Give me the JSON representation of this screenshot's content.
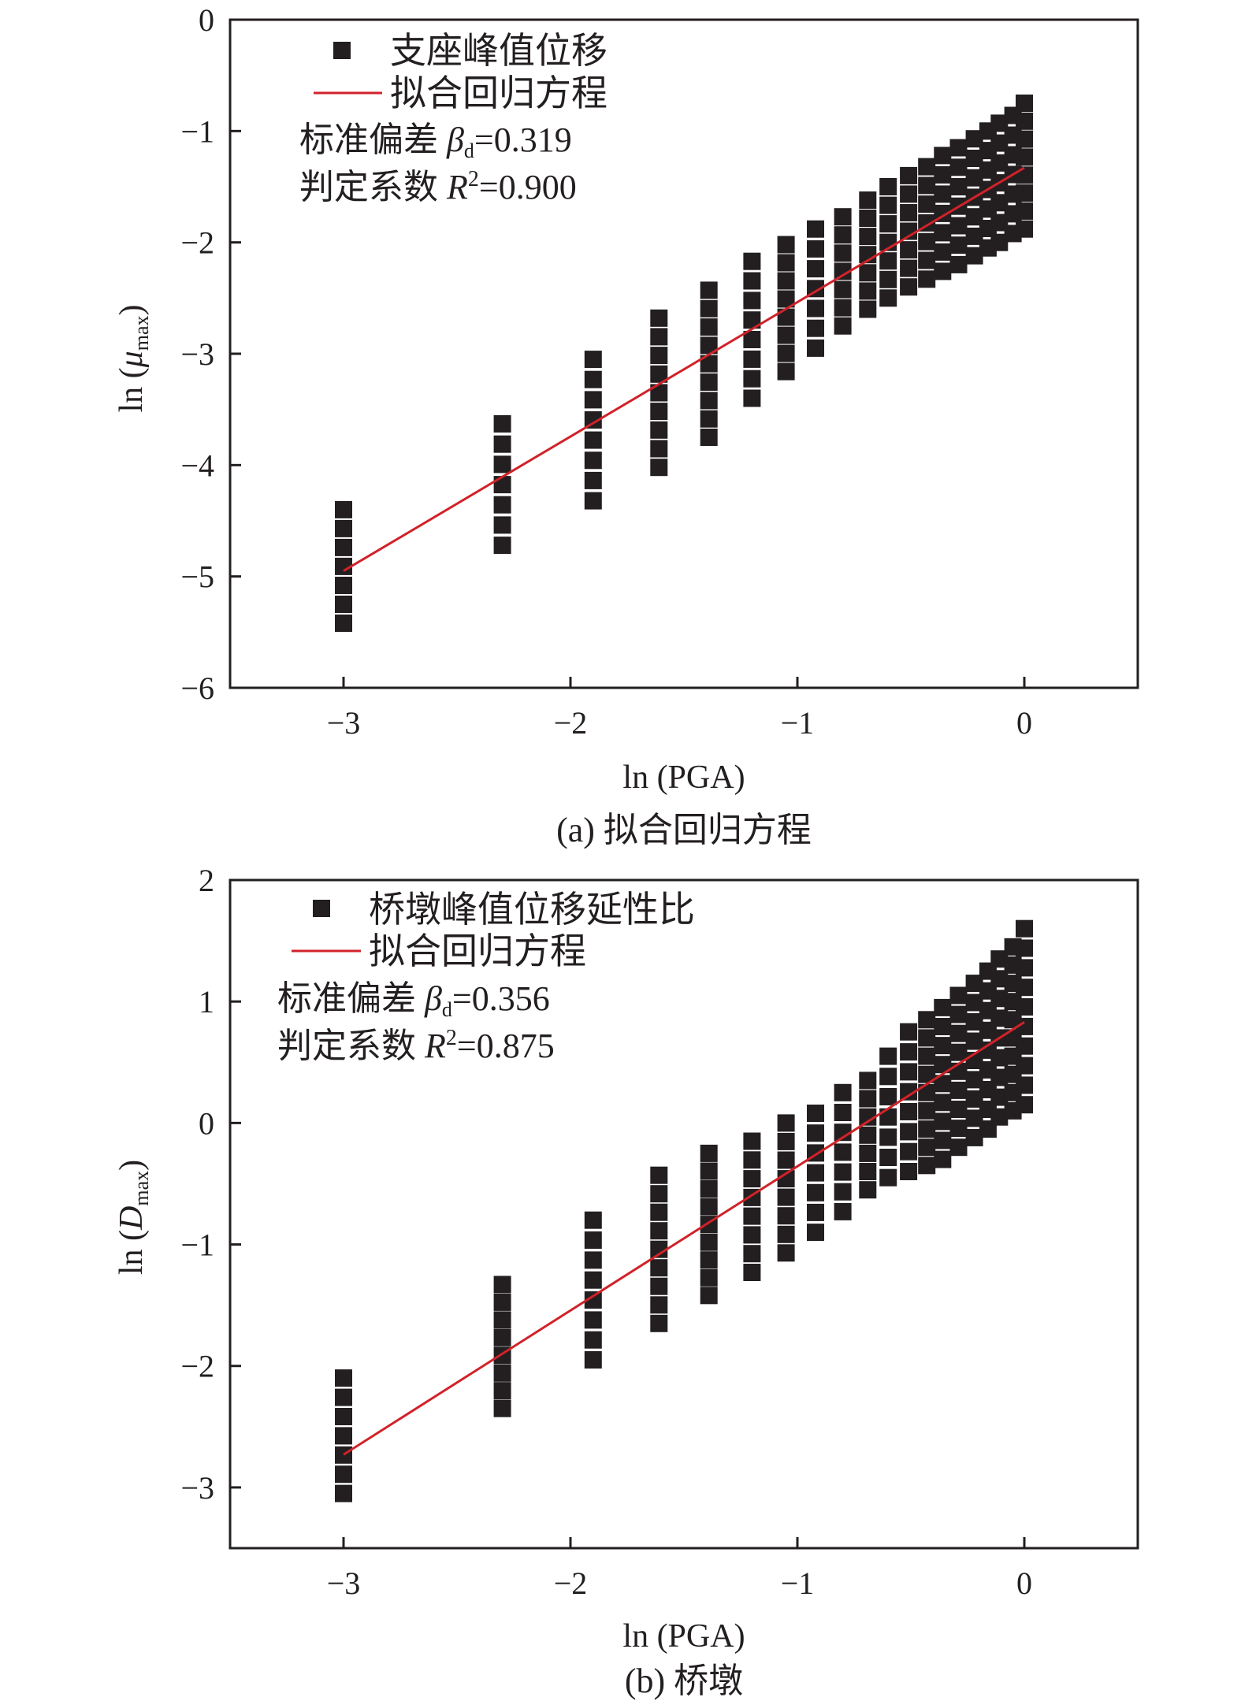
{
  "chart_data": [
    {
      "type": "scatter",
      "panel": "a",
      "caption": "(a) 拟合回归方程",
      "xlabel": "ln (PGA)",
      "ylabel_prefix": "ln (",
      "ylabel_symbol": "μ",
      "ylabel_sub": "max",
      "ylabel_suffix": ")",
      "xlim": [
        -3.5,
        0.5
      ],
      "ylim": [
        -6,
        0
      ],
      "xticks": [
        -3,
        -2,
        -1,
        0
      ],
      "yticks": [
        0,
        -1,
        -2,
        -3,
        -4,
        -5,
        -6
      ],
      "xtick_labels": [
        "−3",
        "−2",
        "−1",
        "0"
      ],
      "ytick_labels": [
        "0",
        "−1",
        "−2",
        "−3",
        "−4",
        "−5",
        "−6"
      ],
      "legend_position": "top-left",
      "legend": {
        "points": "支座峰值位移",
        "line": "拟合回归方程"
      },
      "stats": {
        "beta_prefix": "标准偏差 ",
        "beta_symbol": "β",
        "beta_sub": "d",
        "beta_value": "=0.319",
        "r2_prefix": "判定系数 ",
        "r2_symbol": "R",
        "r2_sup": "2",
        "r2_value": "=0.900"
      },
      "fit_line": {
        "x": [
          -3.0,
          0.0
        ],
        "y": [
          -4.95,
          -1.33
        ]
      },
      "point_columns": [
        {
          "x": -3.0,
          "y_min": -5.42,
          "y_max": -4.4
        },
        {
          "x": -2.3,
          "y_min": -4.72,
          "y_max": -3.63
        },
        {
          "x": -1.9,
          "y_min": -4.32,
          "y_max": -3.05
        },
        {
          "x": -1.61,
          "y_min": -4.02,
          "y_max": -2.68
        },
        {
          "x": -1.39,
          "y_min": -3.75,
          "y_max": -2.43
        },
        {
          "x": -1.2,
          "y_min": -3.4,
          "y_max": -2.17
        },
        {
          "x": -1.05,
          "y_min": -3.16,
          "y_max": -2.02
        },
        {
          "x": -0.92,
          "y_min": -2.95,
          "y_max": -1.88
        },
        {
          "x": -0.8,
          "y_min": -2.75,
          "y_max": -1.77
        },
        {
          "x": -0.69,
          "y_min": -2.6,
          "y_max": -1.62
        },
        {
          "x": -0.6,
          "y_min": -2.5,
          "y_max": -1.5
        },
        {
          "x": -0.51,
          "y_min": -2.4,
          "y_max": -1.4
        },
        {
          "x": -0.43,
          "y_min": -2.33,
          "y_max": -1.32
        },
        {
          "x": -0.36,
          "y_min": -2.26,
          "y_max": -1.22
        },
        {
          "x": -0.29,
          "y_min": -2.2,
          "y_max": -1.15
        },
        {
          "x": -0.22,
          "y_min": -2.12,
          "y_max": -1.07
        },
        {
          "x": -0.16,
          "y_min": -2.05,
          "y_max": -1.0
        },
        {
          "x": -0.11,
          "y_min": -2.0,
          "y_max": -0.93
        },
        {
          "x": -0.05,
          "y_min": -1.92,
          "y_max": -0.86
        },
        {
          "x": 0.0,
          "y_min": -1.88,
          "y_max": -0.75
        }
      ]
    },
    {
      "type": "scatter",
      "panel": "b",
      "caption": "(b) 桥墩",
      "xlabel": "ln (PGA)",
      "ylabel_prefix": "ln (",
      "ylabel_symbol": "D",
      "ylabel_sub": "max",
      "ylabel_suffix": ")",
      "xlim": [
        -3.5,
        0.5
      ],
      "ylim": [
        -3.5,
        2
      ],
      "xticks": [
        -3,
        -2,
        -1,
        0
      ],
      "yticks": [
        2,
        1,
        0,
        -1,
        -2,
        -3
      ],
      "xtick_labels": [
        "−3",
        "−2",
        "−1",
        "0"
      ],
      "ytick_labels": [
        "2",
        "1",
        "0",
        "−1",
        "−2",
        "−3"
      ],
      "legend_position": "top-left",
      "legend": {
        "points": "桥墩峰值位移延性比",
        "line": "拟合回归方程"
      },
      "stats": {
        "beta_prefix": "标准偏差 ",
        "beta_symbol": "β",
        "beta_sub": "d",
        "beta_value": "=0.356",
        "r2_prefix": "判定系数 ",
        "r2_symbol": "R",
        "r2_sup": "2",
        "r2_value": "=0.875"
      },
      "fit_line": {
        "x": [
          -3.0,
          0.0
        ],
        "y": [
          -2.73,
          0.83
        ]
      },
      "point_columns": [
        {
          "x": -3.0,
          "y_min": -3.05,
          "y_max": -2.1
        },
        {
          "x": -2.3,
          "y_min": -2.35,
          "y_max": -1.33
        },
        {
          "x": -1.9,
          "y_min": -1.95,
          "y_max": -0.8
        },
        {
          "x": -1.61,
          "y_min": -1.65,
          "y_max": -0.43
        },
        {
          "x": -1.39,
          "y_min": -1.42,
          "y_max": -0.25
        },
        {
          "x": -1.2,
          "y_min": -1.23,
          "y_max": -0.15
        },
        {
          "x": -1.05,
          "y_min": -1.07,
          "y_max": 0.0
        },
        {
          "x": -0.92,
          "y_min": -0.9,
          "y_max": 0.08
        },
        {
          "x": -0.8,
          "y_min": -0.73,
          "y_max": 0.25
        },
        {
          "x": -0.69,
          "y_min": -0.55,
          "y_max": 0.35
        },
        {
          "x": -0.6,
          "y_min": -0.45,
          "y_max": 0.55
        },
        {
          "x": -0.51,
          "y_min": -0.4,
          "y_max": 0.75
        },
        {
          "x": -0.43,
          "y_min": -0.35,
          "y_max": 0.85
        },
        {
          "x": -0.36,
          "y_min": -0.3,
          "y_max": 0.95
        },
        {
          "x": -0.29,
          "y_min": -0.2,
          "y_max": 1.05
        },
        {
          "x": -0.22,
          "y_min": -0.12,
          "y_max": 1.15
        },
        {
          "x": -0.16,
          "y_min": -0.05,
          "y_max": 1.25
        },
        {
          "x": -0.11,
          "y_min": 0.05,
          "y_max": 1.35
        },
        {
          "x": -0.05,
          "y_min": 0.1,
          "y_max": 1.45
        },
        {
          "x": 0.0,
          "y_min": 0.15,
          "y_max": 1.6
        }
      ]
    }
  ],
  "colors": {
    "points": "#231f20",
    "fit_line": "#d12229",
    "axes": "#231f20"
  }
}
